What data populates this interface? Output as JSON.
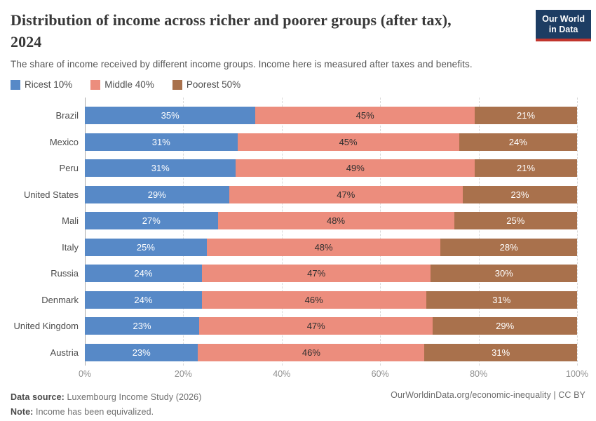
{
  "header": {
    "title_line1": "Distribution of income across richer and poorer groups (after tax),",
    "title_line2": "2024",
    "subtitle": "The share of income received by different income groups. Income here is measured after taxes and benefits.",
    "logo": {
      "line1": "Our World",
      "line2": "in Data",
      "bg_color": "#1d3d63",
      "accent_color": "#c1352d"
    }
  },
  "legend": [
    {
      "label": "Ricest 10%",
      "color": "#5789c7"
    },
    {
      "label": "Middle 40%",
      "color": "#ec8d7d"
    },
    {
      "label": "Poorest 50%",
      "color": "#a9714c"
    }
  ],
  "chart_data": {
    "type": "bar",
    "orientation": "horizontal",
    "stacked": true,
    "normalized": true,
    "categories": [
      "Brazil",
      "Mexico",
      "Peru",
      "United States",
      "Mali",
      "Italy",
      "Russia",
      "Denmark",
      "United Kingdom",
      "Austria"
    ],
    "series": [
      {
        "name": "Ricest 10%",
        "color": "#5789c7",
        "label_color": "#ffffff",
        "values": [
          35,
          31,
          31,
          29,
          27,
          25,
          24,
          24,
          23,
          23
        ]
      },
      {
        "name": "Middle 40%",
        "color": "#ec8d7d",
        "label_color": "#2f2f2f",
        "values": [
          45,
          45,
          49,
          47,
          48,
          48,
          47,
          46,
          47,
          46
        ]
      },
      {
        "name": "Poorest 50%",
        "color": "#a9714c",
        "label_color": "#ffffff",
        "values": [
          21,
          24,
          21,
          23,
          25,
          28,
          30,
          31,
          29,
          31
        ]
      }
    ],
    "value_suffix": "%",
    "x_ticks": [
      "0%",
      "20%",
      "40%",
      "60%",
      "80%",
      "100%"
    ],
    "xlim": [
      0,
      100
    ],
    "grid": true,
    "legend_position": "top"
  },
  "footer": {
    "source_label": "Data source:",
    "source_text": "Luxembourg Income Study (2026)",
    "note_label": "Note:",
    "note_text": "Income has been equivalized.",
    "right_text": "OurWorldinData.org/economic-inequality | CC BY"
  }
}
